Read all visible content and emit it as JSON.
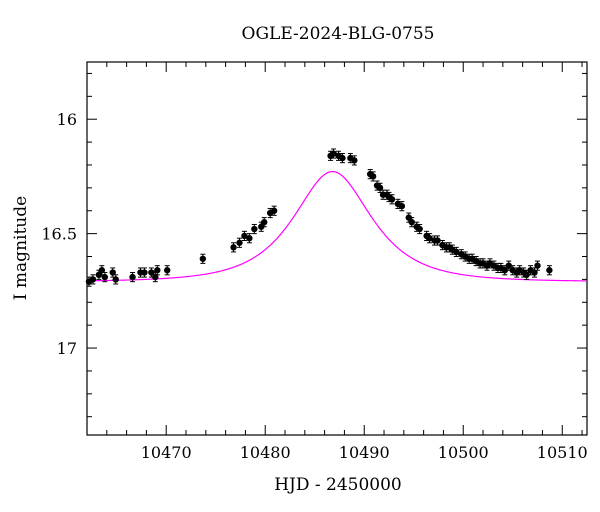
{
  "chart_data": {
    "type": "scatter",
    "title": "OGLE-2024-BLG-0755",
    "xlabel": "HJD - 2450000",
    "ylabel": "I magnitude",
    "xlim": [
      10462.0,
      10512.5
    ],
    "ylim": [
      17.38,
      15.75
    ],
    "y_inverted": true,
    "x_ticks": [
      10470,
      10480,
      10490,
      10500,
      10510
    ],
    "x_tick_labels": [
      "10470",
      "10480",
      "10490",
      "10500",
      "10510"
    ],
    "y_ticks": [
      16,
      16.5,
      17
    ],
    "y_tick_labels": [
      "16",
      "16.5",
      "17"
    ],
    "grid": false,
    "series": [
      {
        "name": "observations",
        "kind": "points_with_errorbars",
        "color": "#000000",
        "x": [
          10462.2,
          10462.6,
          10463.2,
          10463.5,
          10463.8,
          10464.6,
          10464.9,
          10466.6,
          10467.4,
          10467.8,
          10468.5,
          10468.9,
          10469.1,
          10470.1,
          10473.7,
          10476.8,
          10477.4,
          10477.9,
          10478.4,
          10478.9,
          10479.6,
          10479.9,
          10480.5,
          10480.9,
          10486.6,
          10486.9,
          10487.4,
          10487.8,
          10488.6,
          10489.0,
          10490.6,
          10490.9,
          10491.3,
          10491.6,
          10491.9,
          10492.3,
          10492.5,
          10492.8,
          10493.4,
          10493.8,
          10494.5,
          10494.8,
          10495.3,
          10495.6,
          10496.3,
          10496.6,
          10497.1,
          10497.4,
          10497.9,
          10498.3,
          10498.6,
          10498.9,
          10499.3,
          10499.8,
          10500.2,
          10500.6,
          10500.9,
          10501.3,
          10501.7,
          10502.0,
          10502.4,
          10502.7,
          10503.1,
          10503.5,
          10503.8,
          10504.2,
          10504.6,
          10505.0,
          10505.4,
          10505.7,
          10506.1,
          10506.4,
          10506.8,
          10507.2,
          10507.5,
          10508.7
        ],
        "y": [
          16.71,
          16.7,
          16.68,
          16.66,
          16.69,
          16.67,
          16.7,
          16.69,
          16.67,
          16.67,
          16.67,
          16.69,
          16.66,
          16.66,
          16.61,
          16.56,
          16.54,
          16.51,
          16.52,
          16.48,
          16.47,
          16.45,
          16.41,
          16.4,
          16.16,
          16.15,
          16.16,
          16.17,
          16.17,
          16.18,
          16.24,
          16.25,
          16.29,
          16.3,
          16.33,
          16.33,
          16.34,
          16.35,
          16.37,
          16.38,
          16.43,
          16.45,
          16.47,
          16.48,
          16.51,
          16.52,
          16.53,
          16.53,
          16.55,
          16.56,
          16.56,
          16.57,
          16.58,
          16.59,
          16.6,
          16.61,
          16.61,
          16.62,
          16.63,
          16.63,
          16.64,
          16.63,
          16.64,
          16.65,
          16.65,
          16.66,
          16.64,
          16.66,
          16.67,
          16.66,
          16.67,
          16.68,
          16.66,
          16.67,
          16.64,
          16.66
        ],
        "yerr": 0.02
      },
      {
        "name": "model",
        "kind": "line",
        "color": "#ff00ff",
        "model": {
          "t0": 10486.8,
          "tE": 5.4,
          "u0": 0.78,
          "baseline": 16.71
        }
      }
    ]
  }
}
